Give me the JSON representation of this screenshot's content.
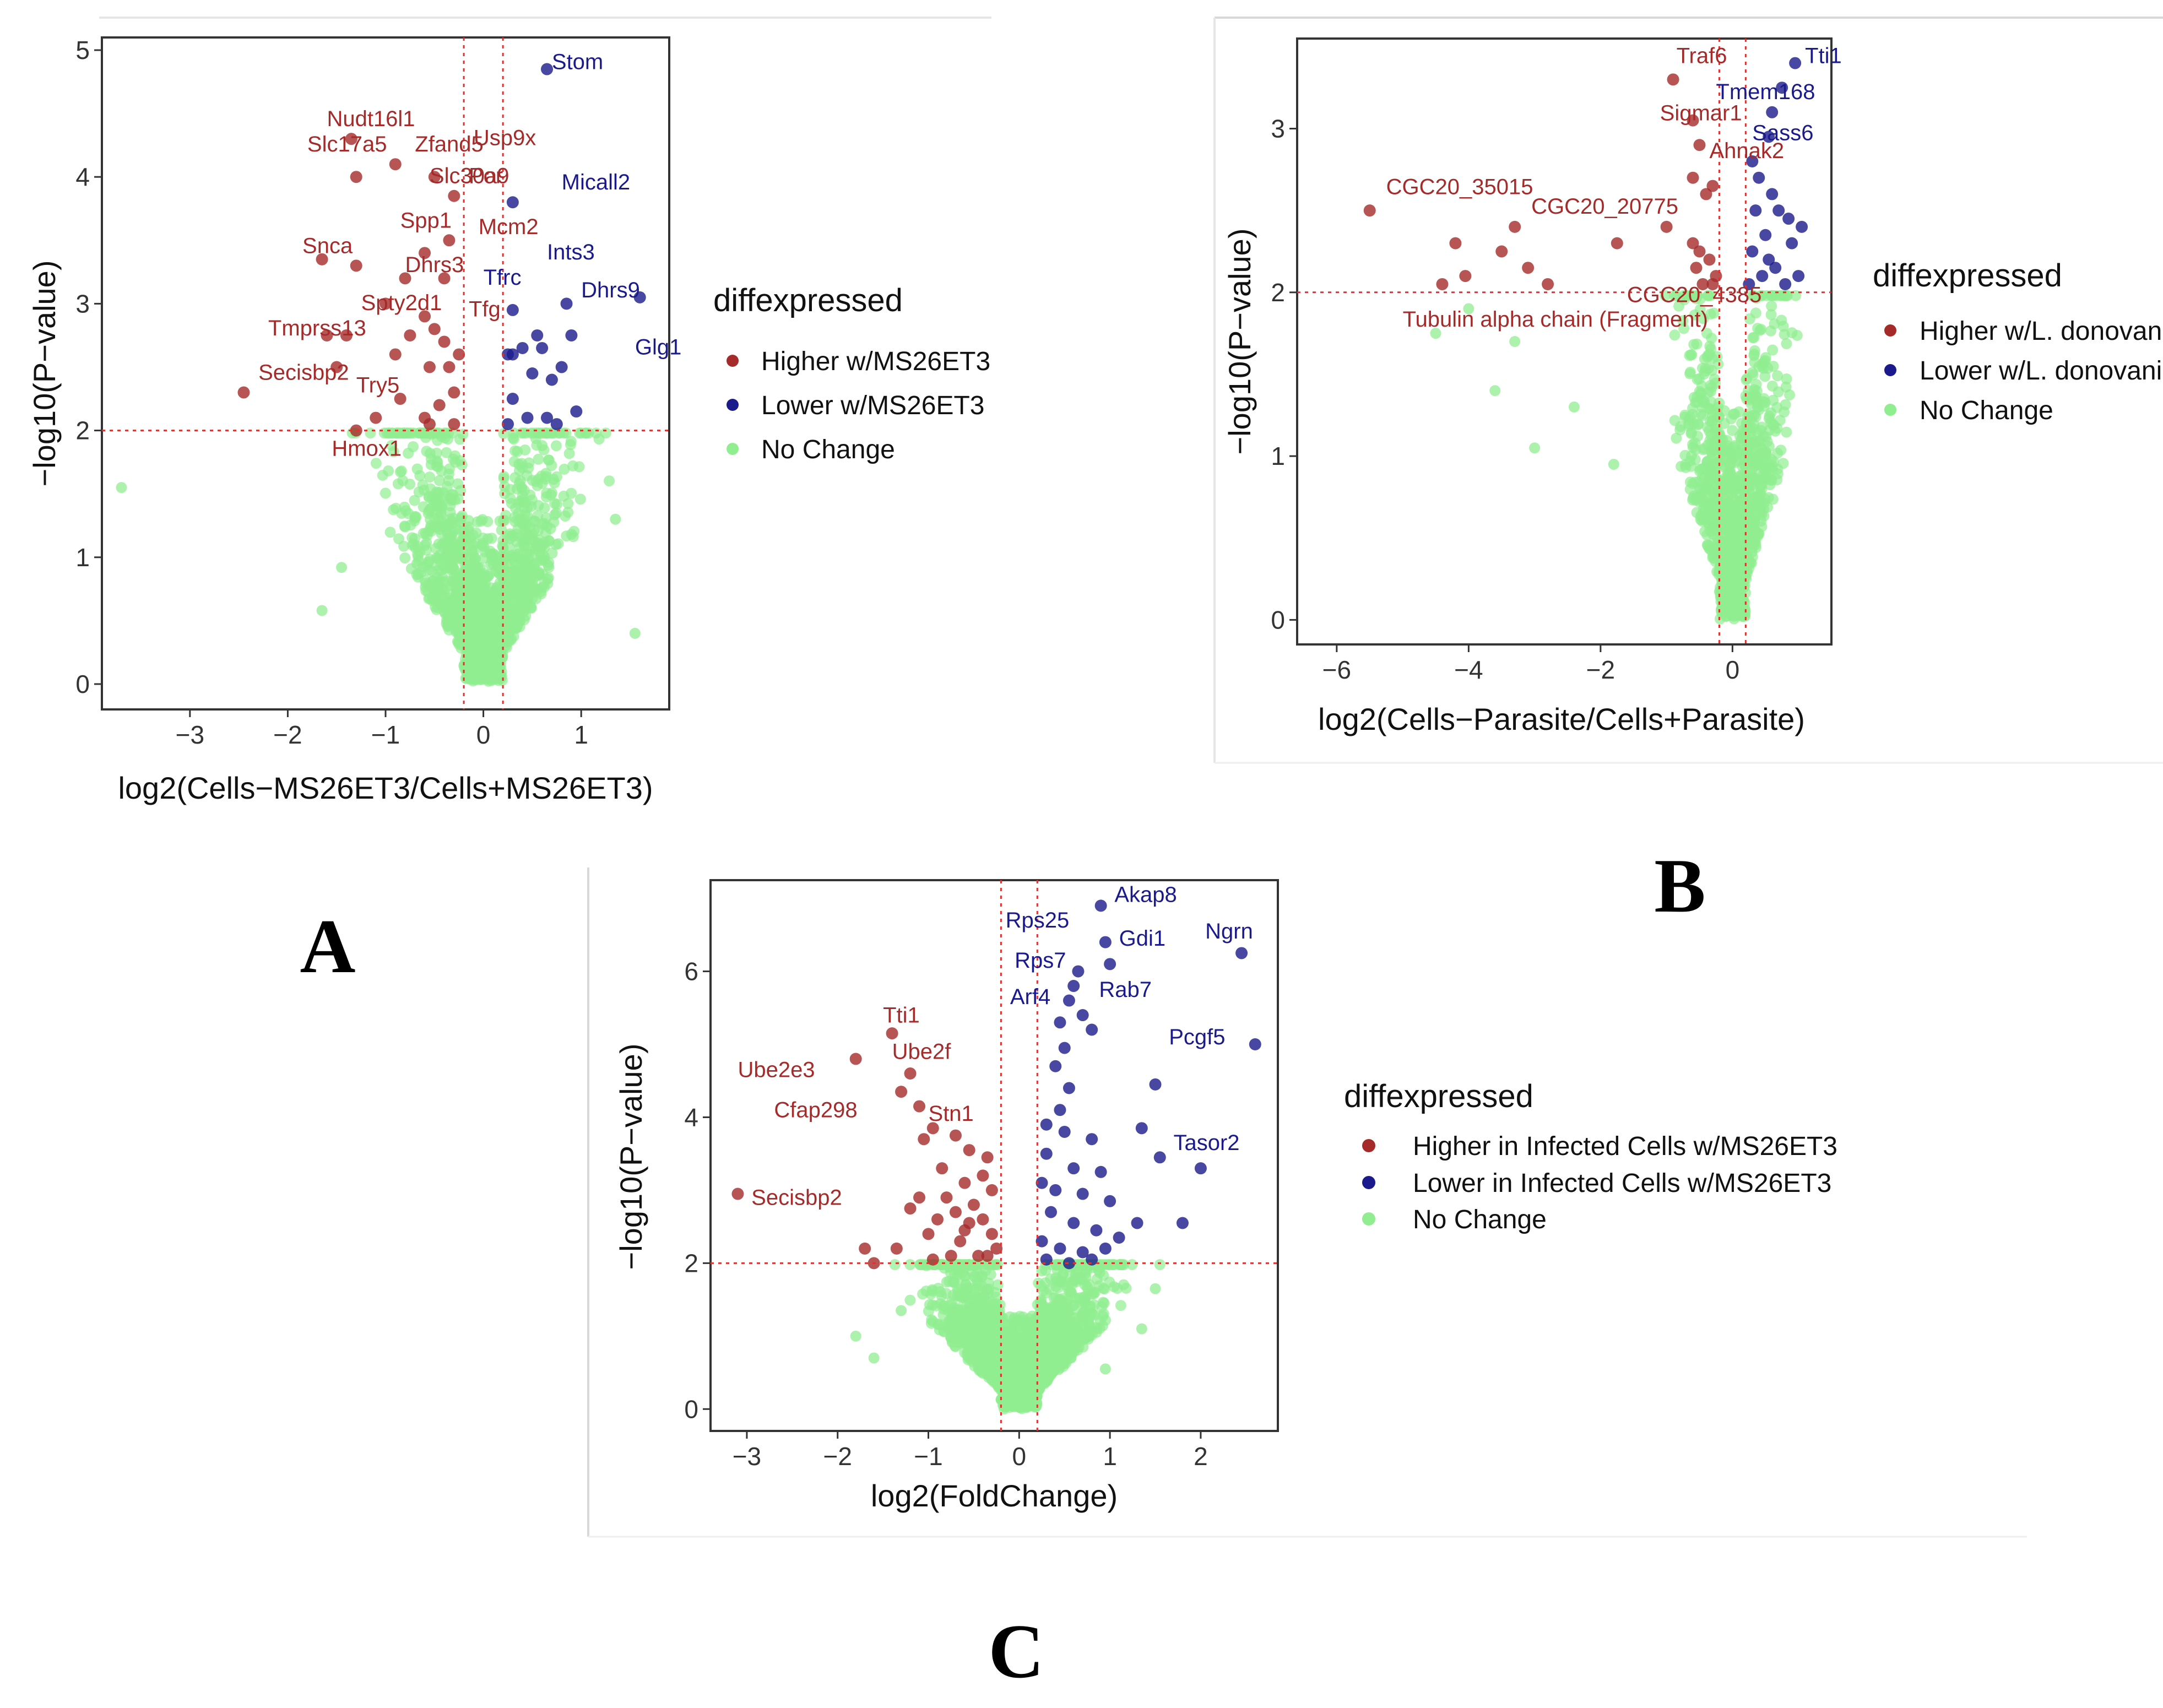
{
  "colors": {
    "higher": "#a52a2a",
    "lower": "#1a1a8c",
    "nochange": "#90ee90",
    "threshold": "#e03030"
  },
  "chart_data": [
    {
      "panel": "A",
      "type": "scatter",
      "xlabel": "log2(Cells−MS26ET3/Cells+MS26ET3)",
      "ylabel": "−log10(P−value)",
      "xlim": [
        -3.9,
        1.9
      ],
      "ylim": [
        -0.2,
        5.1
      ],
      "xticks": [
        -3,
        -2,
        -1,
        0,
        1
      ],
      "yticks": [
        0,
        1,
        2,
        3,
        4,
        5
      ],
      "vlines": [
        -0.2,
        0.2
      ],
      "hline": 2,
      "legend": {
        "title": "diffexpressed",
        "entries": [
          "Higher w/MS26ET3",
          "Lower w/MS26ET3",
          "No Change"
        ],
        "position": "right"
      },
      "cloud": {
        "xmin": -1.9,
        "xmax": 1.5,
        "spread": 0.7,
        "count": 1500,
        "outliers": [
          [
            -3.7,
            1.55
          ],
          [
            -1.65,
            0.58
          ],
          [
            -1.45,
            0.92
          ],
          [
            1.55,
            0.4
          ],
          [
            1.35,
            1.3
          ]
        ]
      },
      "higher": [
        [
          -1.35,
          4.3
        ],
        [
          -1.3,
          4.0
        ],
        [
          -1.65,
          3.35
        ],
        [
          -1.3,
          3.3
        ],
        [
          -1.6,
          2.75
        ],
        [
          -1.4,
          2.75
        ],
        [
          -2.45,
          2.3
        ],
        [
          -1.5,
          2.5
        ],
        [
          -1.3,
          2.0
        ],
        [
          -1.1,
          2.1
        ],
        [
          -0.9,
          2.6
        ],
        [
          -0.75,
          2.75
        ],
        [
          -0.6,
          2.9
        ],
        [
          -0.5,
          2.8
        ],
        [
          -0.4,
          2.7
        ],
        [
          -0.35,
          2.5
        ],
        [
          -0.3,
          2.3
        ],
        [
          -0.55,
          2.5
        ],
        [
          -0.6,
          2.1
        ],
        [
          -0.45,
          2.2
        ],
        [
          -0.3,
          2.05
        ],
        [
          -0.25,
          2.6
        ],
        [
          -0.4,
          3.2
        ],
        [
          -0.6,
          3.4
        ],
        [
          -0.8,
          3.2
        ],
        [
          -1.0,
          3.0
        ],
        [
          -0.9,
          4.1
        ],
        [
          -0.5,
          4.0
        ],
        [
          -0.3,
          3.85
        ],
        [
          -0.35,
          3.5
        ],
        [
          -0.55,
          2.05
        ],
        [
          -0.85,
          2.25
        ]
      ],
      "lower": [
        [
          0.65,
          4.85
        ],
        [
          0.3,
          3.8
        ],
        [
          0.3,
          2.95
        ],
        [
          0.55,
          2.75
        ],
        [
          0.85,
          3.0
        ],
        [
          0.9,
          2.75
        ],
        [
          1.6,
          3.05
        ],
        [
          0.3,
          2.6
        ],
        [
          0.4,
          2.65
        ],
        [
          0.6,
          2.65
        ],
        [
          0.7,
          2.4
        ],
        [
          0.5,
          2.45
        ],
        [
          0.3,
          2.25
        ],
        [
          0.25,
          2.05
        ],
        [
          0.45,
          2.1
        ],
        [
          0.65,
          2.1
        ],
        [
          0.75,
          2.05
        ],
        [
          0.95,
          2.15
        ],
        [
          0.8,
          2.5
        ],
        [
          0.25,
          2.6
        ]
      ],
      "labels": [
        {
          "text": "Stom",
          "x": 0.7,
          "y": 4.85,
          "color": "lower"
        },
        {
          "text": "Nudt16l1",
          "x": -1.6,
          "y": 4.4,
          "color": "higher"
        },
        {
          "text": "Slc17a5",
          "x": -1.8,
          "y": 4.2,
          "color": "higher"
        },
        {
          "text": "Zfand5",
          "x": -0.7,
          "y": 4.2,
          "color": "higher"
        },
        {
          "text": "Usp9x",
          "x": -0.1,
          "y": 4.25,
          "color": "higher"
        },
        {
          "text": "Slc30a9",
          "x": -0.55,
          "y": 3.95,
          "color": "higher"
        },
        {
          "text": "Por",
          "x": -0.15,
          "y": 3.95,
          "color": "higher"
        },
        {
          "text": "Micall2",
          "x": 0.8,
          "y": 3.9,
          "color": "lower"
        },
        {
          "text": "Spp1",
          "x": -0.85,
          "y": 3.6,
          "color": "higher"
        },
        {
          "text": "Mcm2",
          "x": -0.05,
          "y": 3.55,
          "color": "higher"
        },
        {
          "text": "Snca",
          "x": -1.85,
          "y": 3.4,
          "color": "higher"
        },
        {
          "text": "Dhrs3",
          "x": -0.8,
          "y": 3.25,
          "color": "higher"
        },
        {
          "text": "Tfrc",
          "x": 0.0,
          "y": 3.15,
          "color": "lower"
        },
        {
          "text": "Ints3",
          "x": 0.65,
          "y": 3.35,
          "color": "lower"
        },
        {
          "text": "Dhrs9",
          "x": 1.0,
          "y": 3.05,
          "color": "lower"
        },
        {
          "text": "Spty2d1",
          "x": -1.25,
          "y": 2.95,
          "color": "higher"
        },
        {
          "text": "Tfg",
          "x": -0.15,
          "y": 2.9,
          "color": "higher"
        },
        {
          "text": "Glg1",
          "x": 1.55,
          "y": 2.6,
          "color": "lower"
        },
        {
          "text": "Tmprss13",
          "x": -2.2,
          "y": 2.75,
          "color": "higher"
        },
        {
          "text": "Secisbp2",
          "x": -2.3,
          "y": 2.4,
          "color": "higher"
        },
        {
          "text": "Try5",
          "x": -1.3,
          "y": 2.3,
          "color": "higher"
        },
        {
          "text": "Hmox1",
          "x": -1.55,
          "y": 1.8,
          "color": "higher"
        }
      ]
    },
    {
      "panel": "B",
      "type": "scatter",
      "xlabel": "log2(Cells−Parasite/Cells+Parasite)",
      "ylabel": "−log10(P−value)",
      "xlim": [
        -6.6,
        1.5
      ],
      "ylim": [
        -0.15,
        3.55
      ],
      "xticks": [
        -6,
        -4,
        -2,
        0
      ],
      "yticks": [
        0,
        1,
        2,
        3
      ],
      "vlines": [
        -0.2,
        0.2
      ],
      "hline": 2,
      "legend": {
        "title": "diffexpressed",
        "entries": [
          "Higher w/L. donovani",
          "Lower w/L. donovani",
          "No Change"
        ],
        "position": "right"
      },
      "cloud": {
        "xmin": -4.8,
        "xmax": 1.1,
        "spread": 0.6,
        "count": 1100,
        "outliers": [
          [
            -4.5,
            1.75
          ],
          [
            -3.6,
            1.4
          ],
          [
            -3.0,
            1.05
          ],
          [
            -2.4,
            1.3
          ],
          [
            -1.8,
            0.95
          ],
          [
            -3.3,
            1.7
          ],
          [
            -4.0,
            1.9
          ]
        ]
      },
      "higher": [
        [
          -0.9,
          3.3
        ],
        [
          -0.6,
          3.05
        ],
        [
          -0.4,
          2.6
        ],
        [
          -0.6,
          2.7
        ],
        [
          -0.5,
          2.9
        ],
        [
          -0.3,
          2.65
        ],
        [
          -1.0,
          2.4
        ],
        [
          -5.5,
          2.5
        ],
        [
          -4.2,
          2.3
        ],
        [
          -3.3,
          2.4
        ],
        [
          -3.5,
          2.25
        ],
        [
          -3.1,
          2.15
        ],
        [
          -4.05,
          2.1
        ],
        [
          -2.8,
          2.05
        ],
        [
          -4.4,
          2.05
        ],
        [
          -1.75,
          2.3
        ],
        [
          -0.55,
          2.15
        ],
        [
          -0.5,
          2.25
        ],
        [
          -0.35,
          2.2
        ],
        [
          -0.3,
          2.05
        ],
        [
          -0.45,
          2.05
        ],
        [
          -0.25,
          2.1
        ],
        [
          -0.6,
          2.3
        ]
      ],
      "lower": [
        [
          0.95,
          3.4
        ],
        [
          0.75,
          3.25
        ],
        [
          0.6,
          3.1
        ],
        [
          0.55,
          2.95
        ],
        [
          0.3,
          2.8
        ],
        [
          0.4,
          2.7
        ],
        [
          0.6,
          2.6
        ],
        [
          0.7,
          2.5
        ],
        [
          0.85,
          2.45
        ],
        [
          1.05,
          2.4
        ],
        [
          0.5,
          2.35
        ],
        [
          0.9,
          2.3
        ],
        [
          0.3,
          2.25
        ],
        [
          0.65,
          2.15
        ],
        [
          0.45,
          2.1
        ],
        [
          0.25,
          2.05
        ],
        [
          0.8,
          2.05
        ],
        [
          1.0,
          2.1
        ],
        [
          0.35,
          2.5
        ],
        [
          0.55,
          2.2
        ]
      ],
      "labels": [
        {
          "text": "Traf6",
          "x": -0.85,
          "y": 3.4,
          "color": "higher"
        },
        {
          "text": "Tti1",
          "x": 1.1,
          "y": 3.4,
          "color": "lower"
        },
        {
          "text": "Tmem168",
          "x": -0.25,
          "y": 3.18,
          "color": "lower"
        },
        {
          "text": "Sigmar1",
          "x": -1.1,
          "y": 3.05,
          "color": "higher"
        },
        {
          "text": "Sass6",
          "x": 0.3,
          "y": 2.93,
          "color": "lower"
        },
        {
          "text": "Ahnak2",
          "x": -0.35,
          "y": 2.82,
          "color": "higher"
        },
        {
          "text": "CGC20_35015",
          "x": -5.25,
          "y": 2.6,
          "color": "higher"
        },
        {
          "text": "CGC20_20775",
          "x": -3.05,
          "y": 2.48,
          "color": "higher"
        },
        {
          "text": "CGC20_4385",
          "x": -1.6,
          "y": 1.94,
          "color": "higher"
        },
        {
          "text": "Tubulin alpha chain (Fragment)",
          "x": -5.0,
          "y": 1.79,
          "color": "higher"
        }
      ]
    },
    {
      "panel": "C",
      "type": "scatter",
      "xlabel": "log2(FoldChange)",
      "ylabel": "−log10(P−value)",
      "xlim": [
        -3.4,
        2.85
      ],
      "ylim": [
        -0.3,
        7.25
      ],
      "xticks": [
        -3,
        -2,
        -1,
        0,
        1,
        2
      ],
      "yticks": [
        0,
        2,
        4,
        6
      ],
      "vlines": [
        -0.2,
        0.2
      ],
      "hline": 2,
      "legend": {
        "title": "diffexpressed",
        "entries": [
          "Higher in Infected Cells w/MS26ET3",
          "Lower in Infected Cells w/MS26ET3",
          "No Change"
        ],
        "position": "right"
      },
      "cloud": {
        "xmin": -1.85,
        "xmax": 1.55,
        "spread": 0.75,
        "count": 1800,
        "outliers": [
          [
            -1.8,
            1.0
          ],
          [
            -1.6,
            0.7
          ],
          [
            -1.3,
            1.35
          ],
          [
            1.35,
            1.1
          ],
          [
            1.5,
            1.65
          ],
          [
            0.95,
            0.55
          ]
        ]
      },
      "higher": [
        [
          -1.4,
          5.15
        ],
        [
          -1.8,
          4.8
        ],
        [
          -1.2,
          4.6
        ],
        [
          -1.3,
          4.35
        ],
        [
          -1.1,
          4.15
        ],
        [
          -0.95,
          3.85
        ],
        [
          -1.05,
          3.7
        ],
        [
          -0.7,
          3.75
        ],
        [
          -0.55,
          3.55
        ],
        [
          -0.35,
          3.45
        ],
        [
          -3.1,
          2.95
        ],
        [
          -1.7,
          2.2
        ],
        [
          -1.6,
          2.0
        ],
        [
          -1.35,
          2.2
        ],
        [
          -1.0,
          2.4
        ],
        [
          -0.9,
          2.6
        ],
        [
          -0.8,
          2.9
        ],
        [
          -0.6,
          3.1
        ],
        [
          -0.5,
          2.8
        ],
        [
          -0.4,
          2.6
        ],
        [
          -0.3,
          2.4
        ],
        [
          -0.25,
          2.2
        ],
        [
          -0.45,
          2.1
        ],
        [
          -0.65,
          2.3
        ],
        [
          -0.75,
          2.1
        ],
        [
          -0.95,
          2.05
        ],
        [
          -0.3,
          3.0
        ],
        [
          -0.55,
          2.55
        ],
        [
          -0.85,
          3.3
        ],
        [
          -1.2,
          2.75
        ],
        [
          -0.4,
          3.2
        ],
        [
          -0.7,
          2.7
        ],
        [
          -0.35,
          2.1
        ],
        [
          -0.6,
          2.45
        ],
        [
          -1.1,
          2.9
        ]
      ],
      "lower": [
        [
          0.9,
          6.9
        ],
        [
          0.95,
          6.4
        ],
        [
          1.0,
          6.1
        ],
        [
          0.65,
          6.0
        ],
        [
          2.45,
          6.25
        ],
        [
          0.6,
          5.8
        ],
        [
          0.55,
          5.6
        ],
        [
          0.7,
          5.4
        ],
        [
          0.8,
          5.2
        ],
        [
          0.45,
          5.3
        ],
        [
          2.6,
          5.0
        ],
        [
          0.5,
          4.95
        ],
        [
          0.4,
          4.7
        ],
        [
          1.5,
          4.45
        ],
        [
          0.55,
          4.4
        ],
        [
          0.45,
          4.1
        ],
        [
          1.35,
          3.85
        ],
        [
          0.3,
          3.9
        ],
        [
          0.5,
          3.8
        ],
        [
          0.8,
          3.7
        ],
        [
          2.0,
          3.3
        ],
        [
          1.55,
          3.45
        ],
        [
          0.3,
          3.5
        ],
        [
          0.6,
          3.3
        ],
        [
          0.9,
          3.25
        ],
        [
          0.25,
          3.1
        ],
        [
          0.4,
          3.0
        ],
        [
          0.7,
          2.95
        ],
        [
          1.0,
          2.85
        ],
        [
          1.8,
          2.55
        ],
        [
          1.3,
          2.55
        ],
        [
          0.35,
          2.7
        ],
        [
          0.6,
          2.55
        ],
        [
          0.85,
          2.45
        ],
        [
          0.25,
          2.3
        ],
        [
          0.45,
          2.2
        ],
        [
          0.7,
          2.15
        ],
        [
          0.95,
          2.2
        ],
        [
          1.1,
          2.35
        ],
        [
          0.3,
          2.05
        ],
        [
          0.55,
          2.0
        ],
        [
          0.8,
          2.05
        ]
      ],
      "labels": [
        {
          "text": "Akap8",
          "x": 1.05,
          "y": 6.95,
          "color": "lower"
        },
        {
          "text": "Rps25",
          "x": -0.15,
          "y": 6.6,
          "color": "lower"
        },
        {
          "text": "Gdi1",
          "x": 1.1,
          "y": 6.35,
          "color": "lower"
        },
        {
          "text": "Ngrn",
          "x": 2.05,
          "y": 6.45,
          "color": "lower"
        },
        {
          "text": "Rps7",
          "x": -0.05,
          "y": 6.05,
          "color": "lower"
        },
        {
          "text": "Rab7",
          "x": 0.88,
          "y": 5.65,
          "color": "lower"
        },
        {
          "text": "Arf4",
          "x": -0.1,
          "y": 5.55,
          "color": "lower"
        },
        {
          "text": "Pcgf5",
          "x": 1.65,
          "y": 5.0,
          "color": "lower"
        },
        {
          "text": "Tti1",
          "x": -1.5,
          "y": 5.3,
          "color": "higher"
        },
        {
          "text": "Ube2f",
          "x": -1.4,
          "y": 4.8,
          "color": "higher"
        },
        {
          "text": "Ube2e3",
          "x": -3.1,
          "y": 4.55,
          "color": "higher"
        },
        {
          "text": "Cfap298",
          "x": -2.7,
          "y": 4.0,
          "color": "higher"
        },
        {
          "text": "Stn1",
          "x": -1.0,
          "y": 3.95,
          "color": "higher"
        },
        {
          "text": "Tasor2",
          "x": 1.7,
          "y": 3.55,
          "color": "lower"
        },
        {
          "text": "Secisbp2",
          "x": -2.95,
          "y": 2.8,
          "color": "higher"
        }
      ]
    }
  ],
  "panel_letters": [
    "A",
    "B",
    "C"
  ]
}
